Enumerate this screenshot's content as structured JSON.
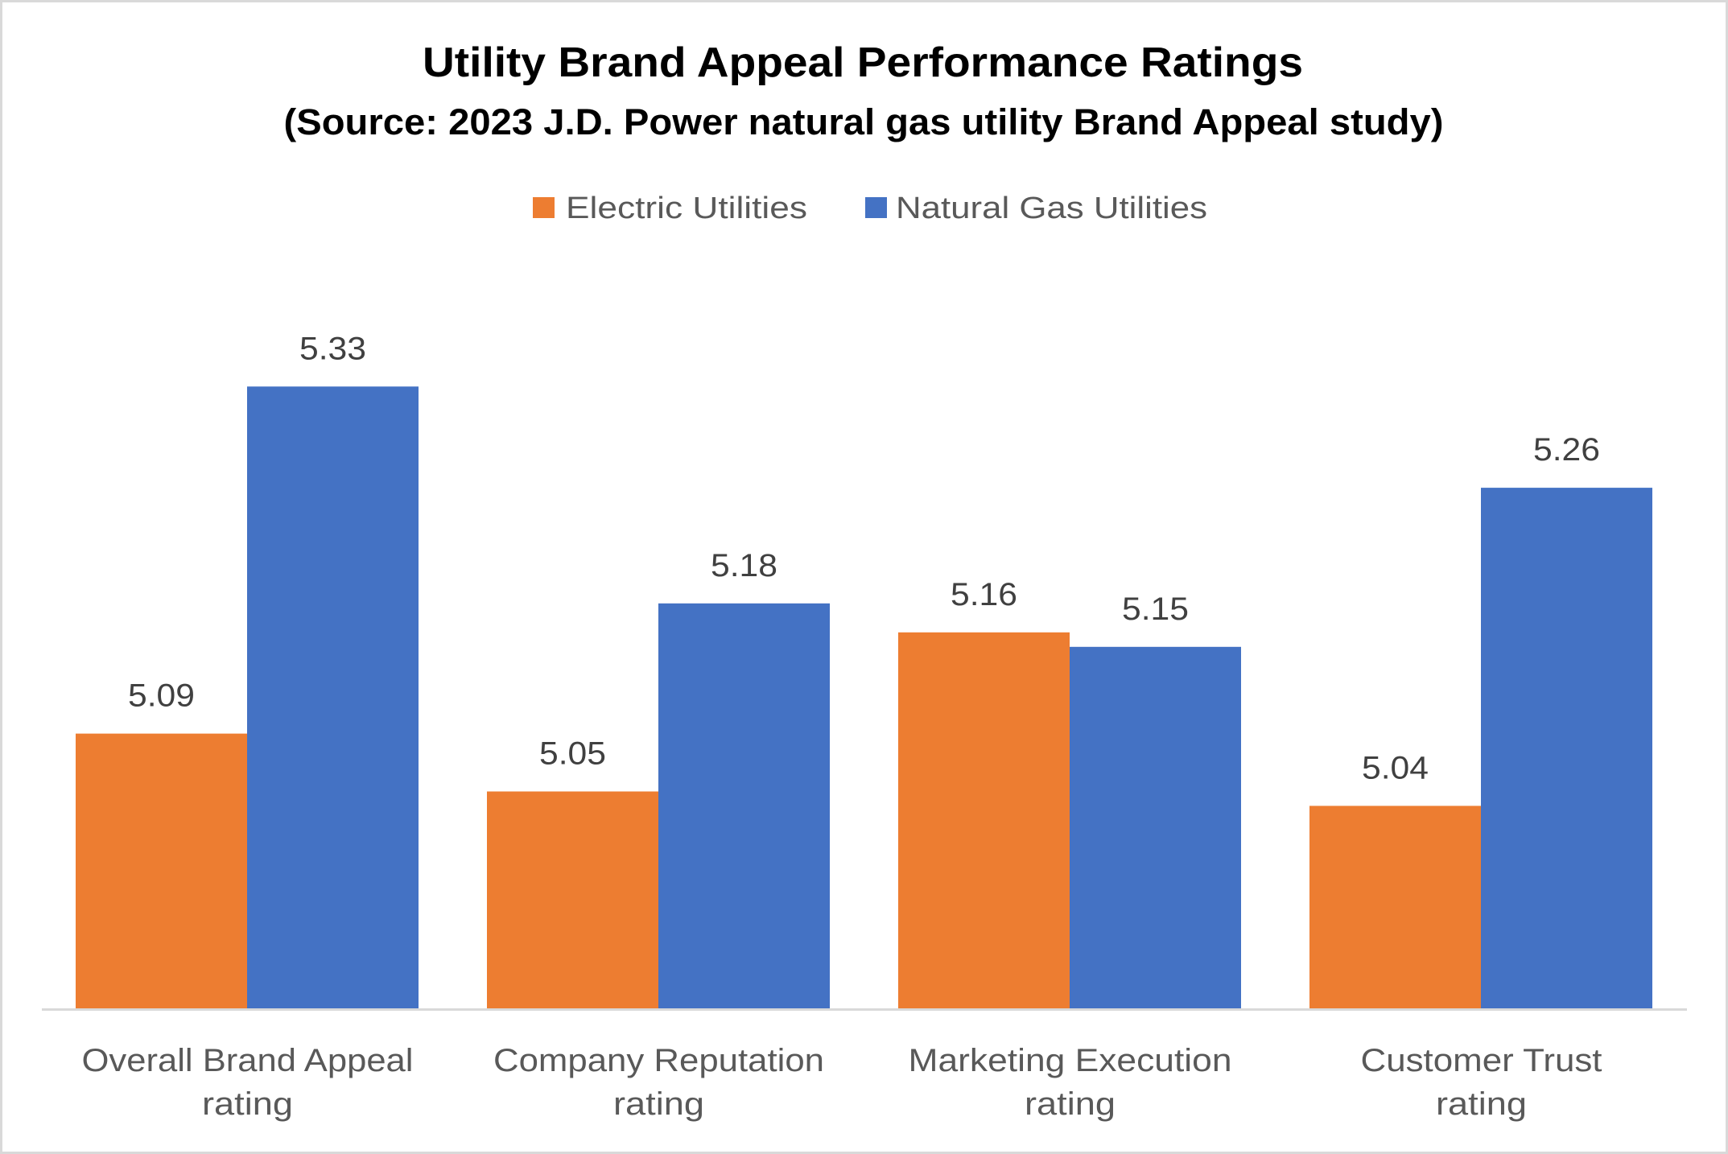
{
  "chart_data": {
    "type": "bar",
    "title": "Utility Brand Appeal Performance Ratings",
    "subtitle": "(Source: 2023 J.D. Power natural gas utility Brand Appeal study)",
    "xlabel": "",
    "ylabel": "",
    "ylim": [
      4.9,
      5.4
    ],
    "grid": false,
    "y_axis_visible": false,
    "legend_position": "top",
    "categories": [
      "Overall Brand Appeal rating",
      "Company Reputation rating",
      "Marketing Execution rating",
      "Customer Trust rating"
    ],
    "category_label_lines": [
      [
        "Overall Brand Appeal",
        "rating"
      ],
      [
        "Company Reputation",
        "rating"
      ],
      [
        "Marketing Execution",
        "rating"
      ],
      [
        "Customer Trust",
        "rating"
      ]
    ],
    "series": [
      {
        "name": "Electric Utilities",
        "color": "#ED7D31",
        "values": [
          5.09,
          5.05,
          5.16,
          5.04
        ],
        "labels": [
          "5.09",
          "5.05",
          "5.16",
          "5.04"
        ]
      },
      {
        "name": "Natural Gas Utilities",
        "color": "#4472C4",
        "values": [
          5.33,
          5.18,
          5.15,
          5.26
        ],
        "labels": [
          "5.33",
          "5.18",
          "5.15",
          "5.26"
        ]
      }
    ]
  },
  "colors": {
    "axis_line": "#D9D9D9",
    "frame_border": "#D9D9D9",
    "category_text": "#595959",
    "value_text": "#404040",
    "title_text": "#000000"
  }
}
